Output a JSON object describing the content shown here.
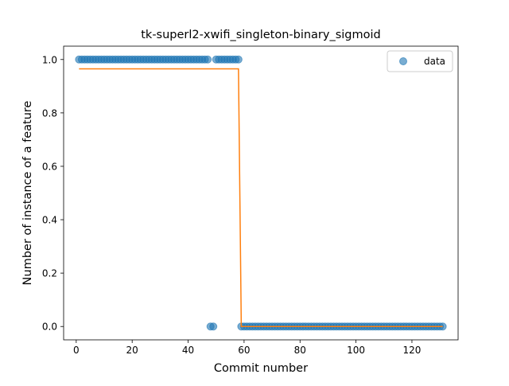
{
  "chart_data": {
    "type": "scatter",
    "title": "tk-superl2-xwifi_singleton-binary_sigmoid",
    "xlabel": "Commit number",
    "ylabel": "Number of instance of a feature",
    "xlim": [
      -4.5,
      136.5
    ],
    "ylim": [
      -0.05,
      1.05
    ],
    "xticks": [
      0,
      20,
      40,
      60,
      80,
      100,
      120
    ],
    "yticks": [
      0.0,
      0.2,
      0.4,
      0.6,
      0.8,
      1.0
    ],
    "xtick_labels": [
      "0",
      "20",
      "40",
      "60",
      "80",
      "100",
      "120"
    ],
    "ytick_labels": [
      "0.0",
      "0.2",
      "0.4",
      "0.6",
      "0.8",
      "1.0"
    ],
    "legend": {
      "position": "top-right",
      "entries": [
        "data"
      ]
    },
    "grid": false,
    "series": [
      {
        "name": "data",
        "kind": "scatter",
        "color": "#1f77b4",
        "points": [
          [
            1,
            1
          ],
          [
            2,
            1
          ],
          [
            3,
            1
          ],
          [
            4,
            1
          ],
          [
            5,
            1
          ],
          [
            6,
            1
          ],
          [
            7,
            1
          ],
          [
            8,
            1
          ],
          [
            9,
            1
          ],
          [
            10,
            1
          ],
          [
            11,
            1
          ],
          [
            12,
            1
          ],
          [
            13,
            1
          ],
          [
            14,
            1
          ],
          [
            15,
            1
          ],
          [
            16,
            1
          ],
          [
            17,
            1
          ],
          [
            18,
            1
          ],
          [
            19,
            1
          ],
          [
            20,
            1
          ],
          [
            21,
            1
          ],
          [
            22,
            1
          ],
          [
            23,
            1
          ],
          [
            24,
            1
          ],
          [
            25,
            1
          ],
          [
            26,
            1
          ],
          [
            27,
            1
          ],
          [
            28,
            1
          ],
          [
            29,
            1
          ],
          [
            30,
            1
          ],
          [
            31,
            1
          ],
          [
            32,
            1
          ],
          [
            33,
            1
          ],
          [
            34,
            1
          ],
          [
            35,
            1
          ],
          [
            36,
            1
          ],
          [
            37,
            1
          ],
          [
            38,
            1
          ],
          [
            39,
            1
          ],
          [
            40,
            1
          ],
          [
            41,
            1
          ],
          [
            42,
            1
          ],
          [
            43,
            1
          ],
          [
            44,
            1
          ],
          [
            45,
            1
          ],
          [
            46,
            1
          ],
          [
            47,
            1
          ],
          [
            48,
            0
          ],
          [
            49,
            0
          ],
          [
            50,
            1
          ],
          [
            51,
            1
          ],
          [
            52,
            1
          ],
          [
            53,
            1
          ],
          [
            54,
            1
          ],
          [
            55,
            1
          ],
          [
            56,
            1
          ],
          [
            57,
            1
          ],
          [
            58,
            1
          ],
          [
            59,
            0
          ],
          [
            60,
            0
          ],
          [
            61,
            0
          ],
          [
            62,
            0
          ],
          [
            63,
            0
          ],
          [
            64,
            0
          ],
          [
            65,
            0
          ],
          [
            66,
            0
          ],
          [
            67,
            0
          ],
          [
            68,
            0
          ],
          [
            69,
            0
          ],
          [
            70,
            0
          ],
          [
            71,
            0
          ],
          [
            72,
            0
          ],
          [
            73,
            0
          ],
          [
            74,
            0
          ],
          [
            75,
            0
          ],
          [
            76,
            0
          ],
          [
            77,
            0
          ],
          [
            78,
            0
          ],
          [
            79,
            0
          ],
          [
            80,
            0
          ],
          [
            81,
            0
          ],
          [
            82,
            0
          ],
          [
            83,
            0
          ],
          [
            84,
            0
          ],
          [
            85,
            0
          ],
          [
            86,
            0
          ],
          [
            87,
            0
          ],
          [
            88,
            0
          ],
          [
            89,
            0
          ],
          [
            90,
            0
          ],
          [
            91,
            0
          ],
          [
            92,
            0
          ],
          [
            93,
            0
          ],
          [
            94,
            0
          ],
          [
            95,
            0
          ],
          [
            96,
            0
          ],
          [
            97,
            0
          ],
          [
            98,
            0
          ],
          [
            99,
            0
          ],
          [
            100,
            0
          ],
          [
            101,
            0
          ],
          [
            102,
            0
          ],
          [
            103,
            0
          ],
          [
            104,
            0
          ],
          [
            105,
            0
          ],
          [
            106,
            0
          ],
          [
            107,
            0
          ],
          [
            108,
            0
          ],
          [
            109,
            0
          ],
          [
            110,
            0
          ],
          [
            111,
            0
          ],
          [
            112,
            0
          ],
          [
            113,
            0
          ],
          [
            114,
            0
          ],
          [
            115,
            0
          ],
          [
            116,
            0
          ],
          [
            117,
            0
          ],
          [
            118,
            0
          ],
          [
            119,
            0
          ],
          [
            120,
            0
          ],
          [
            121,
            0
          ],
          [
            122,
            0
          ],
          [
            123,
            0
          ],
          [
            124,
            0
          ],
          [
            125,
            0
          ],
          [
            126,
            0
          ],
          [
            127,
            0
          ],
          [
            128,
            0
          ],
          [
            129,
            0
          ],
          [
            130,
            0
          ],
          [
            131,
            0
          ]
        ]
      },
      {
        "kind": "line",
        "color": "#ff7f0e",
        "points": [
          [
            1,
            0.965
          ],
          [
            58,
            0.965
          ],
          [
            59,
            0
          ],
          [
            131,
            0
          ]
        ]
      }
    ]
  }
}
